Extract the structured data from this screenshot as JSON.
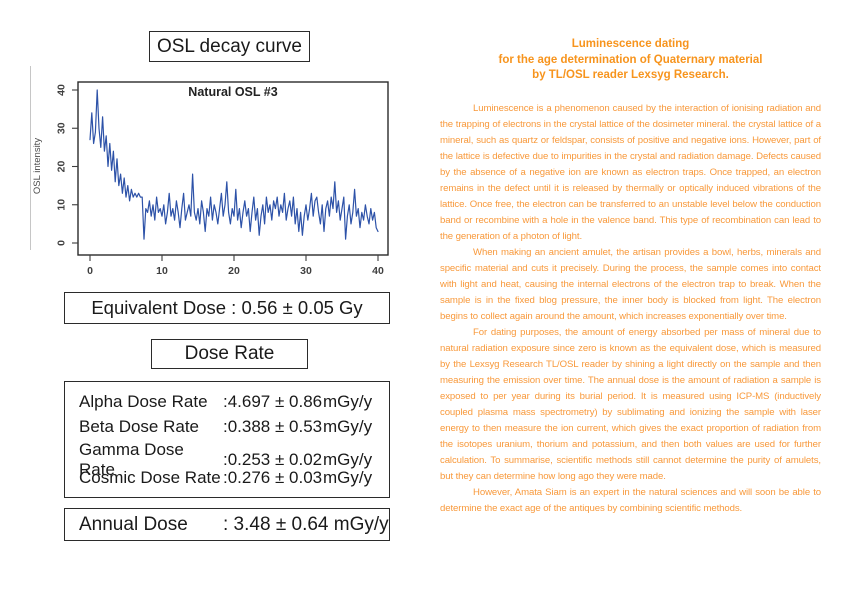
{
  "left": {
    "chart_box_title": "OSL decay curve",
    "equivalent_dose_text": "Equivalent Dose : 0.56 ± 0.05 Gy",
    "dose_rate_heading": "Dose Rate",
    "dose_rates": [
      {
        "label": "Alpha Dose Rate",
        "value": ":4.697 ± 0.86",
        "unit": "mGy/y"
      },
      {
        "label": "Beta Dose Rate",
        "value": ":0.388 ± 0.53",
        "unit": "mGy/y"
      },
      {
        "label": "Gamma Dose Rate",
        "value": ":0.253 ± 0.02",
        "unit": "mGy/y"
      },
      {
        "label": "Cosmic Dose Rate",
        "value": ":0.276 ± 0.03",
        "unit": "mGy/y"
      }
    ],
    "annual_dose": {
      "label": "Annual Dose",
      "value": ": 3.48 ± 0.64 mGy/y"
    }
  },
  "right": {
    "title_color": "#F7941D",
    "body_color": "#F8993B",
    "title_lines": [
      "Luminescence dating",
      "for the age determination of Quaternary material",
      "by TL/OSL reader Lexsyg Research."
    ],
    "paragraphs": [
      "Luminescence is a phenomenon caused by the interaction of ionising radiation and the trapping of electrons in the crystal lattice of the dosimeter mineral. the crystal lattice of a mineral, such as quartz or feldspar, consists of positive and negative ions. However, part of the lattice is defective due to impurities in the crystal and radiation damage. Defects caused by the absence of a negative ion are known as electron traps. Once trapped, an electron remains in the defect until it is released by thermally or optically induced vibrations of the lattice. Once free, the electron can be transferred to an unstable level below the conduction band or recombine with a hole in the valence band. This type of recombination can lead to the generation of a photon of light.",
      "When making an ancient amulet, the artisan provides a bowl, herbs, minerals and specific material and cuts it precisely. During the process, the sample comes into contact with light and heat, causing the internal electrons of the electron trap to break. When the sample is in the fixed blog pressure, the inner body is blocked from light. The electron begins to collect again around the amount, which increases exponentially over time.",
      "For dating purposes, the amount of energy absorbed per mass of mineral due to natural radiation exposure since zero is known as the equivalent dose, which is measured by the Lexsyg Research TL/OSL reader by shining a light directly on the sample and then measuring the emission over time. The annual dose is the amount of radiation a sample is exposed to per year during its burial period. It is measured using ICP-MS (inductively coupled plasma mass spectrometry) by sublimating and ionizing the sample with laser energy to then measure the ion current, which gives the exact proportion of radiation from the isotopes uranium, thorium and potassium, and then both values are used for further calculation. To summarise, scientific methods still cannot determine the purity of amulets, but they can determine how long ago they were made.",
      "However, Amata Siam is an expert in the natural sciences and will soon be able to determine the exact age of the antiques by combining scientific methods."
    ]
  },
  "chart_data": {
    "type": "line",
    "title": "Natural OSL #3",
    "xlabel": "",
    "ylabel": "OSL intensity",
    "xlim": [
      0,
      40
    ],
    "ylim": [
      0,
      40
    ],
    "xticks": [
      0,
      10,
      20,
      30,
      40
    ],
    "yticks": [
      0,
      10,
      20,
      30,
      40
    ],
    "grid": false,
    "legend": "none",
    "line_color": "#2d52a8",
    "x_start": 0,
    "x_step": 0.25,
    "values": [
      27,
      34,
      26,
      29,
      40,
      30,
      25,
      33,
      24,
      28,
      20,
      26,
      19,
      24,
      16,
      22,
      15,
      18,
      13,
      17,
      12,
      15,
      11,
      14,
      12,
      13,
      12,
      13,
      12,
      12,
      1,
      9,
      8,
      11,
      7,
      10,
      6,
      12,
      8,
      9,
      7,
      10,
      5,
      8,
      13,
      7,
      9,
      6,
      11,
      8,
      4,
      9,
      13,
      6,
      8,
      10,
      7,
      18,
      8,
      6,
      9,
      5,
      11,
      8,
      3,
      9,
      7,
      12,
      6,
      10,
      8,
      5,
      9,
      13,
      7,
      10,
      16,
      8,
      5,
      9,
      7,
      14,
      6,
      9,
      4,
      8,
      11,
      7,
      9,
      3,
      8,
      12,
      6,
      9,
      2,
      7,
      10,
      5,
      12,
      8,
      10,
      6,
      11,
      9,
      12,
      7,
      10,
      8,
      13,
      6,
      9,
      11,
      7,
      12,
      5,
      9,
      3,
      8,
      2,
      7,
      10,
      6,
      9,
      13,
      7,
      11,
      12,
      8,
      5,
      10,
      3,
      9,
      11,
      7,
      12,
      9,
      16,
      8,
      11,
      6,
      9,
      12,
      1,
      7,
      10,
      5,
      8,
      14,
      7,
      9,
      4,
      8,
      6,
      10,
      7,
      5,
      9,
      6,
      8,
      4,
      3
    ]
  }
}
